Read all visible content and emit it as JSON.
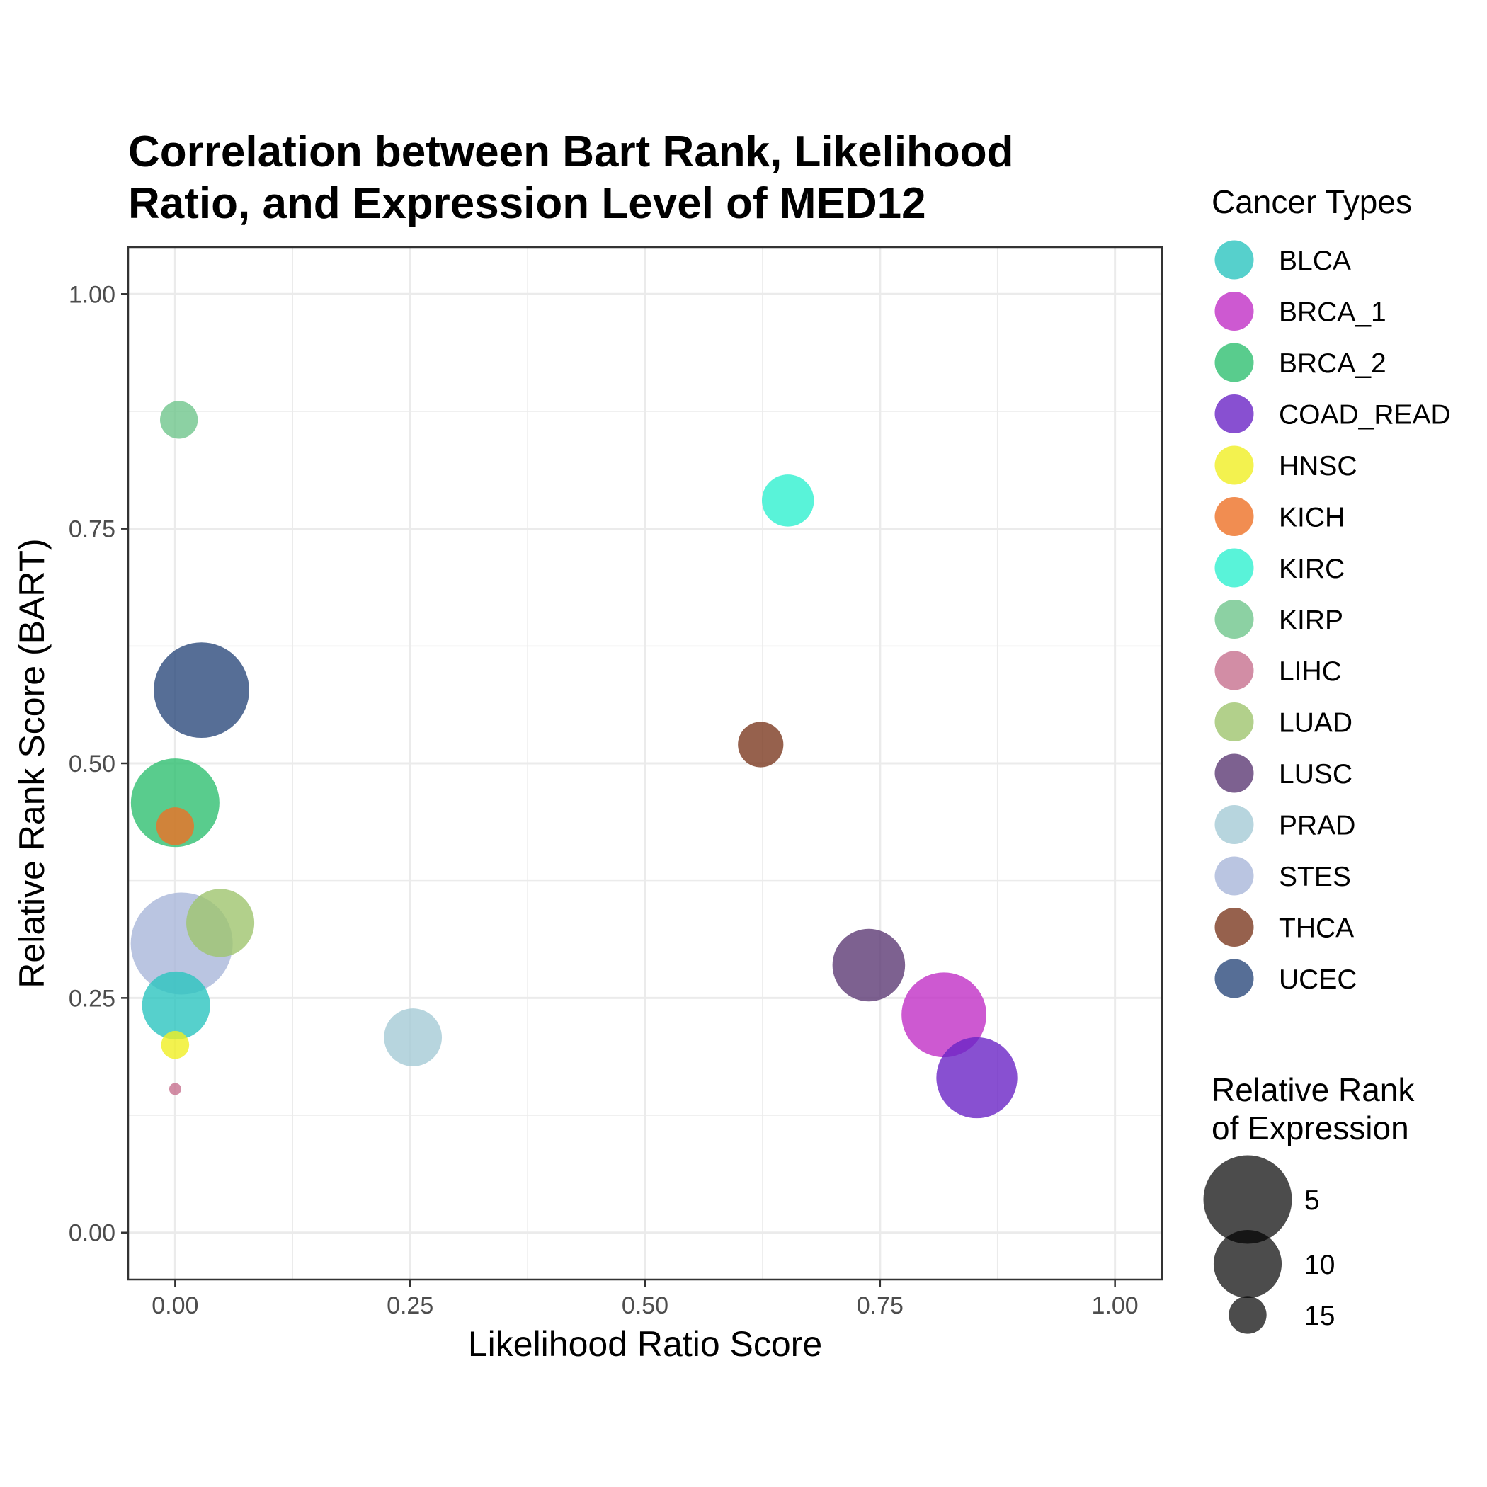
{
  "chart_data": {
    "type": "scatter",
    "title": "Correlation between Bart Rank, Likelihood Ratio, and Expression Level of MED12",
    "title_lines": [
      "Correlation between Bart Rank, Likelihood",
      "Ratio, and Expression Level of MED12"
    ],
    "xlabel": "Likelihood Ratio Score",
    "ylabel": "Relative Rank Score (BART)",
    "xlim": [
      -0.05,
      1.05
    ],
    "ylim": [
      -0.05,
      1.05
    ],
    "x_ticks": [
      0,
      0.25,
      0.5,
      0.75,
      1.0
    ],
    "x_tick_labels": [
      "0.00",
      "0.25",
      "0.50",
      "0.75",
      "1.00"
    ],
    "y_ticks": [
      0,
      0.25,
      0.5,
      0.75,
      1.0
    ],
    "y_tick_labels": [
      "0.00",
      "0.25",
      "0.50",
      "0.75",
      "1.00"
    ],
    "grid": true,
    "legend_placement": "right",
    "color_legend_title": "Cancer Types",
    "size_legend_title_lines": [
      "Relative Rank",
      "of Expression"
    ],
    "size_legend": [
      {
        "label": "5",
        "value": 5
      },
      {
        "label": "10",
        "value": 10
      },
      {
        "label": "15",
        "value": 15
      }
    ],
    "size_domain": [
      1,
      17
    ],
    "series": [
      {
        "name": "STES",
        "color": "#a9b6da",
        "x": 0.007,
        "y": 0.308,
        "size": 1
      },
      {
        "name": "UCEC",
        "color": "#2c4a7c",
        "x": 0.028,
        "y": 0.578,
        "size": 3
      },
      {
        "name": "BRCA_2",
        "color": "#2fbf71",
        "x": 0.0,
        "y": 0.458,
        "size": 5
      },
      {
        "name": "BRCA_1",
        "color": "#c12fc6",
        "x": 0.818,
        "y": 0.232,
        "size": 6
      },
      {
        "name": "COAD_READ",
        "color": "#6a24c6",
        "x": 0.853,
        "y": 0.165,
        "size": 7
      },
      {
        "name": "LUSC",
        "color": "#5c3a74",
        "x": 0.738,
        "y": 0.285,
        "size": 9
      },
      {
        "name": "BLCA",
        "color": "#2cc4bf",
        "x": 0.001,
        "y": 0.242,
        "size": 10
      },
      {
        "name": "LUAD",
        "color": "#9fc46e",
        "x": 0.048,
        "y": 0.33,
        "size": 10
      },
      {
        "name": "PRAD",
        "color": "#a5cbd6",
        "x": 0.253,
        "y": 0.208,
        "size": 12
      },
      {
        "name": "KIRC",
        "color": "#2ff0d0",
        "x": 0.652,
        "y": 0.78,
        "size": 13
      },
      {
        "name": "THCA",
        "color": "#7c3a21",
        "x": 0.623,
        "y": 0.52,
        "size": 14
      },
      {
        "name": "KIRP",
        "color": "#6fc68c",
        "x": 0.004,
        "y": 0.866,
        "size": 15
      },
      {
        "name": "KICH",
        "color": "#ee7125",
        "x": 0.0,
        "y": 0.433,
        "size": 15
      },
      {
        "name": "HNSC",
        "color": "#f0ef23",
        "x": 0.0,
        "y": 0.2,
        "size": 16
      },
      {
        "name": "LIHC",
        "color": "#c7708e",
        "x": 0.0,
        "y": 0.153,
        "size": 17
      }
    ],
    "legend_order": [
      "BLCA",
      "BRCA_1",
      "BRCA_2",
      "COAD_READ",
      "HNSC",
      "KICH",
      "KIRC",
      "KIRP",
      "LIHC",
      "LUAD",
      "LUSC",
      "PRAD",
      "STES",
      "THCA",
      "UCEC"
    ]
  }
}
